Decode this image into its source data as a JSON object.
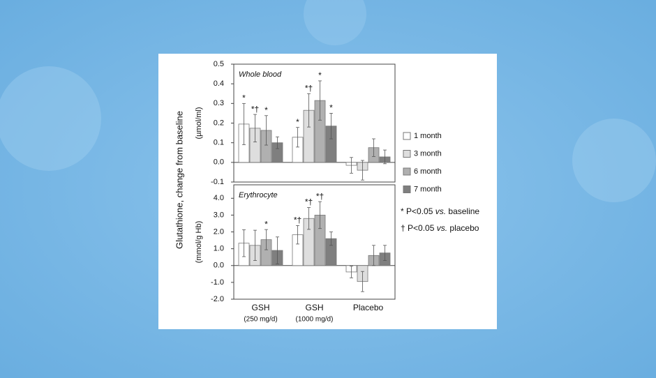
{
  "y_axis_label": "Glutathione, change from baseline",
  "chart_data": [
    {
      "type": "bar",
      "panel_title": "Whole blood",
      "y_unit_label": "(µmol/ml)",
      "categories": [
        "GSH",
        "GSH",
        "Placebo"
      ],
      "ylim": [
        -0.1,
        0.5
      ],
      "yticks": [
        -0.1,
        {
          "value": 0,
          "label": "0.0"
        },
        0.1,
        0.2,
        0.3,
        0.4,
        0.5
      ],
      "series": [
        {
          "name": "1 month",
          "color": "#ffffff",
          "values": [
            0.195,
            0.128,
            -0.015
          ],
          "errors": [
            0.105,
            0.05,
            0.04
          ],
          "annotations": [
            "*",
            "*",
            null
          ]
        },
        {
          "name": "3 month",
          "color": "#dedede",
          "values": [
            0.174,
            0.265,
            -0.04
          ],
          "errors": [
            0.07,
            0.085,
            0.05
          ],
          "annotations": [
            "*†",
            "*†",
            null
          ]
        },
        {
          "name": "6 month",
          "color": "#b0b0b0",
          "values": [
            0.163,
            0.315,
            0.075
          ],
          "errors": [
            0.075,
            0.1,
            0.045
          ],
          "annotations": [
            "*",
            "*",
            null
          ]
        },
        {
          "name": "7 month",
          "color": "#7f7f7f",
          "values": [
            0.1,
            0.185,
            0.028
          ],
          "errors": [
            0.03,
            0.065,
            0.035
          ],
          "annotations": [
            null,
            "*",
            null
          ]
        }
      ]
    },
    {
      "type": "bar",
      "panel_title": "Erythrocyte",
      "y_unit_label": "(mmol/g Hb)",
      "categories": [
        "GSH",
        "GSH",
        "Placebo"
      ],
      "category_sublabels": [
        "(250 mg/d)",
        "(1000 mg/d)",
        null
      ],
      "ylim": [
        -2.0,
        4.8
      ],
      "yticks": [
        {
          "value": -2,
          "label": "-2.0"
        },
        {
          "value": -1,
          "label": "-1.0"
        },
        {
          "value": 0,
          "label": "0.0"
        },
        {
          "value": 1,
          "label": "1.0"
        },
        {
          "value": 2,
          "label": "2.0"
        },
        {
          "value": 3,
          "label": "3.0"
        },
        {
          "value": 4,
          "label": "4.0"
        }
      ],
      "series": [
        {
          "color": "#ffffff",
          "values": [
            1.33,
            1.83,
            -0.38
          ],
          "errors": [
            0.8,
            0.55,
            0.35
          ],
          "annotations": [
            null,
            "*†",
            null
          ]
        },
        {
          "color": "#dedede",
          "values": [
            1.2,
            2.8,
            -0.95
          ],
          "errors": [
            0.9,
            0.65,
            0.6
          ],
          "annotations": [
            null,
            "*†",
            null
          ]
        },
        {
          "color": "#b0b0b0",
          "values": [
            1.54,
            3.0,
            0.6
          ],
          "errors": [
            0.6,
            0.8,
            0.6
          ],
          "annotations": [
            "*",
            "*†",
            null
          ]
        },
        {
          "color": "#7f7f7f",
          "values": [
            0.9,
            1.6,
            0.75
          ],
          "errors": [
            0.8,
            0.4,
            0.45
          ],
          "annotations": [
            null,
            null,
            null
          ]
        }
      ]
    }
  ],
  "notes": [
    [
      "* P<0.05 ",
      "vs.",
      " baseline"
    ],
    [
      "† P<0.05 ",
      "vs.",
      " placebo"
    ]
  ]
}
